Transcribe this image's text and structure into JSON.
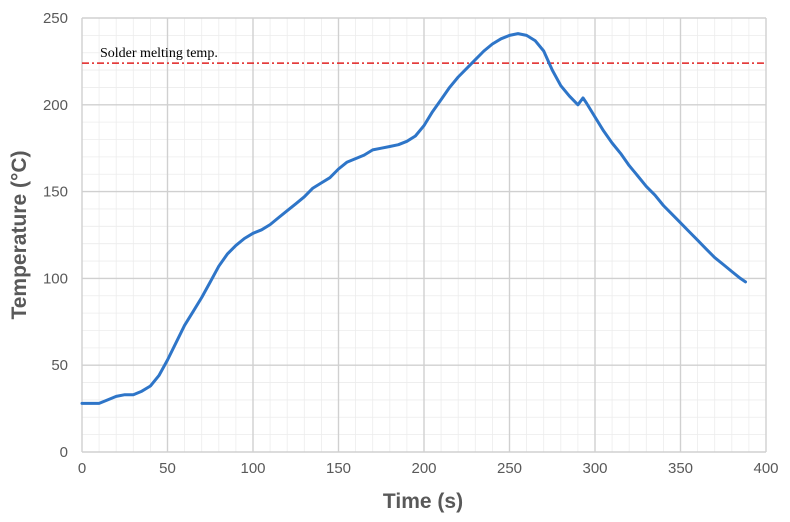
{
  "chart_data": {
    "type": "line",
    "title": "",
    "xlabel": "Time (s)",
    "ylabel": "Temperature (°C)",
    "xlim": [
      0,
      400
    ],
    "ylim": [
      0,
      250
    ],
    "xticks": [
      0,
      50,
      100,
      150,
      200,
      250,
      300,
      350,
      400
    ],
    "yticks": [
      0,
      50,
      100,
      150,
      200,
      250
    ],
    "grid": true,
    "legend": "none",
    "series": [
      {
        "color": "#2e75c8",
        "x": [
          0,
          5,
          10,
          15,
          20,
          25,
          30,
          35,
          40,
          45,
          50,
          55,
          60,
          65,
          70,
          75,
          80,
          85,
          90,
          95,
          100,
          105,
          110,
          115,
          120,
          125,
          130,
          135,
          140,
          145,
          150,
          155,
          160,
          165,
          170,
          175,
          180,
          185,
          190,
          195,
          200,
          205,
          210,
          215,
          220,
          225,
          230,
          235,
          240,
          245,
          250,
          255,
          260,
          265,
          270,
          275,
          280,
          285,
          290,
          293,
          295,
          300,
          305,
          310,
          315,
          320,
          325,
          330,
          335,
          340,
          345,
          350,
          355,
          360,
          365,
          370,
          375,
          380,
          385,
          388
        ],
        "y": [
          28,
          28,
          28,
          30,
          32,
          33,
          33,
          35,
          38,
          44,
          53,
          63,
          73,
          81,
          89,
          98,
          107,
          114,
          119,
          123,
          126,
          128,
          131,
          135,
          139,
          143,
          147,
          152,
          155,
          158,
          163,
          167,
          169,
          171,
          174,
          175,
          176,
          177,
          179,
          182,
          188,
          196,
          203,
          210,
          216,
          221,
          226,
          231,
          235,
          238,
          240,
          241,
          240,
          237,
          231,
          220,
          211,
          205,
          200,
          204,
          201,
          193,
          185,
          178,
          172,
          165,
          159,
          153,
          148,
          142,
          137,
          132,
          127,
          122,
          117,
          112,
          108,
          104,
          100,
          98
        ]
      }
    ],
    "annotations": [
      {
        "label": "Solder melting temp.",
        "type": "hline",
        "y": 224,
        "color": "#e02020",
        "style": "dash-dot"
      }
    ]
  }
}
